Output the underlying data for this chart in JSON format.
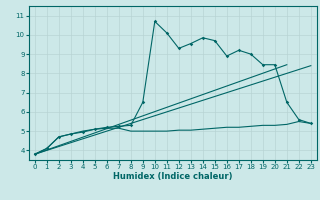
{
  "xlabel": "Humidex (Indice chaleur)",
  "bg_color": "#cce8e8",
  "grid_color": "#b8d4d4",
  "line_color": "#006666",
  "xlim": [
    -0.5,
    23.5
  ],
  "ylim": [
    3.5,
    11.5
  ],
  "xticks": [
    0,
    1,
    2,
    3,
    4,
    5,
    6,
    7,
    8,
    9,
    10,
    11,
    12,
    13,
    14,
    15,
    16,
    17,
    18,
    19,
    20,
    21,
    22,
    23
  ],
  "yticks": [
    4,
    5,
    6,
    7,
    8,
    9,
    10,
    11
  ],
  "curve1_x": [
    0,
    1,
    2,
    3,
    4,
    5,
    6,
    7,
    8,
    9,
    10,
    11,
    12,
    13,
    14,
    15,
    16,
    17,
    18,
    19,
    20,
    21,
    22,
    23
  ],
  "curve1_y": [
    3.8,
    4.1,
    4.7,
    4.85,
    4.95,
    5.1,
    5.2,
    5.25,
    5.3,
    6.5,
    10.7,
    10.1,
    9.3,
    9.55,
    9.85,
    9.7,
    8.9,
    9.2,
    9.0,
    8.45,
    8.45,
    6.5,
    5.6,
    5.4
  ],
  "curve2_x": [
    0,
    1,
    2,
    3,
    4,
    5,
    6,
    7,
    8,
    9,
    10,
    11,
    12,
    13,
    14,
    15,
    16,
    17,
    18,
    19,
    20,
    21,
    22,
    23
  ],
  "curve2_y": [
    3.8,
    4.1,
    4.7,
    4.85,
    5.0,
    5.1,
    5.15,
    5.15,
    5.0,
    5.0,
    5.0,
    5.0,
    5.05,
    5.05,
    5.1,
    5.15,
    5.2,
    5.2,
    5.25,
    5.3,
    5.3,
    5.35,
    5.5,
    5.4
  ],
  "line1_x": [
    0,
    21
  ],
  "line1_y": [
    3.8,
    8.45
  ],
  "line2_x": [
    0,
    23
  ],
  "line2_y": [
    3.8,
    8.4
  ]
}
